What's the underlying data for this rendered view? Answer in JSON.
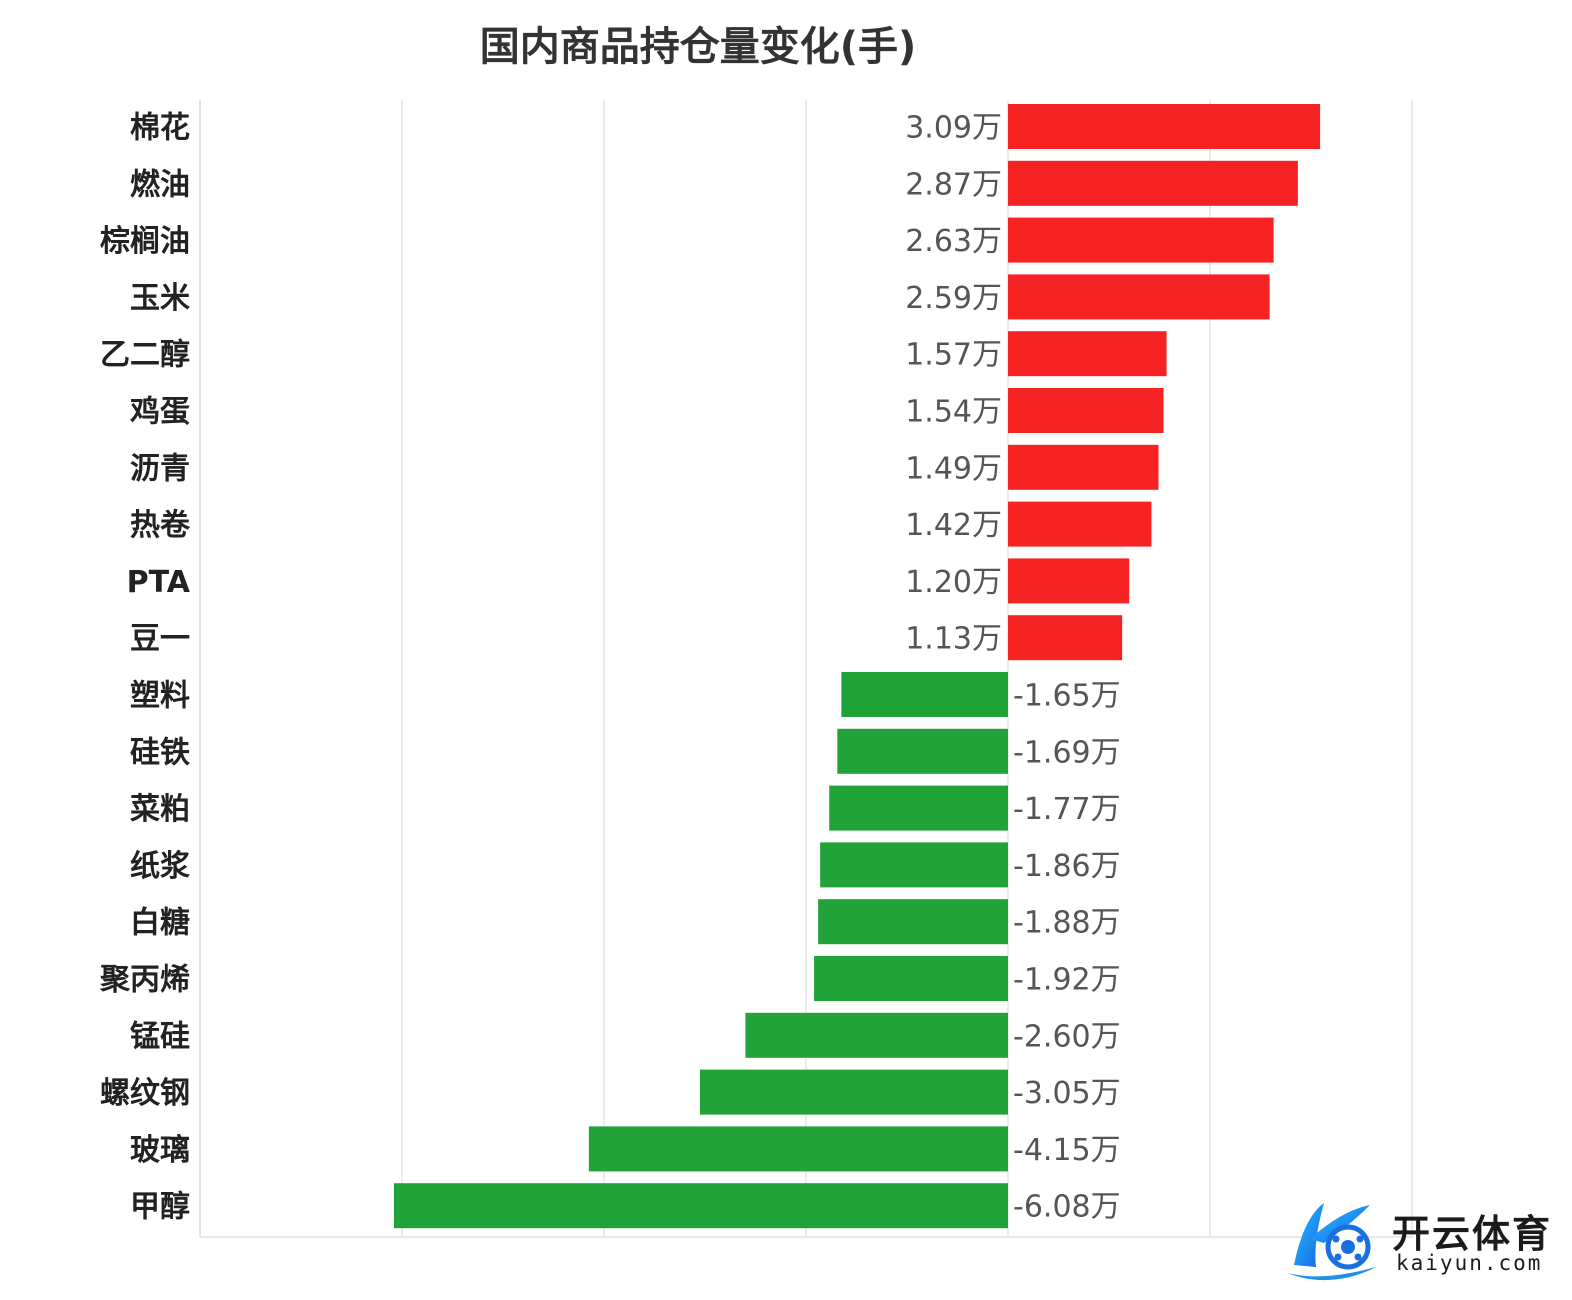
{
  "chart_data": {
    "type": "bar",
    "orientation": "horizontal",
    "title": "国内商品持仓量变化(手)",
    "categories": [
      "棉花",
      "燃油",
      "棕榈油",
      "玉米",
      "乙二醇",
      "鸡蛋",
      "沥青",
      "热卷",
      "PTA",
      "豆一",
      "塑料",
      "硅铁",
      "菜粕",
      "纸浆",
      "白糖",
      "聚丙烯",
      "锰硅",
      "螺纹钢",
      "玻璃",
      "甲醇"
    ],
    "values": [
      30900,
      28700,
      26300,
      25900,
      15700,
      15400,
      14900,
      14200,
      12000,
      11300,
      -16500,
      -16900,
      -17700,
      -18600,
      -18800,
      -19200,
      -26000,
      -30500,
      -41500,
      -60800
    ],
    "value_labels": [
      "3.09万",
      "2.87万",
      "2.63万",
      "2.59万",
      "1.57万",
      "1.54万",
      "1.49万",
      "1.42万",
      "1.20万",
      "1.13万",
      "-1.65万",
      "-1.69万",
      "-1.77万",
      "-1.86万",
      "-1.88万",
      "-1.92万",
      "-2.60万",
      "-3.05万",
      "-4.15万",
      "-6.08万"
    ],
    "xlim": [
      -80000,
      40000
    ],
    "gridlines": [
      -80000,
      -60000,
      -40000,
      -20000,
      0,
      20000,
      40000
    ],
    "grid": true,
    "colors": {
      "positive": "#f52323",
      "negative": "#21a33a"
    }
  },
  "watermark": {
    "name": "开云体育",
    "url": "kaiyun.com"
  }
}
